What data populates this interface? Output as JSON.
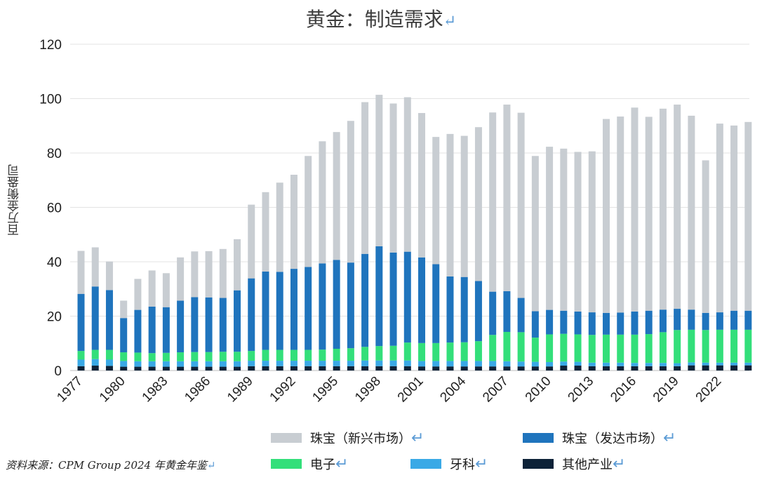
{
  "title": "黄金：制造需求",
  "ylabel": "百万金衡盎司",
  "source": "资料来源：CPM Group 2024 年黄金年鉴",
  "legend": [
    {
      "label": "珠宝（新兴市场）",
      "color": "#c8cdd2"
    },
    {
      "label": "珠宝（发达市场）",
      "color": "#1f74bd"
    },
    {
      "label": "电子",
      "color": "#33df7a"
    },
    {
      "label": "牙科",
      "color": "#3aa9e6"
    },
    {
      "label": "其他产业",
      "color": "#0d2238"
    }
  ],
  "chart_data": {
    "type": "bar",
    "stacked": true,
    "title": "黄金：制造需求",
    "xlabel": "",
    "ylabel": "百万金衡盎司",
    "ylim": [
      0,
      120
    ],
    "yticks": [
      0,
      20,
      40,
      60,
      80,
      100,
      120
    ],
    "grid": true,
    "legend_position": "bottom",
    "categories": [
      "1977",
      "1978",
      "1979",
      "1980",
      "1981",
      "1982",
      "1983",
      "1984",
      "1985",
      "1986",
      "1987",
      "1988",
      "1989",
      "1990",
      "1991",
      "1992",
      "1993",
      "1994",
      "1995",
      "1996",
      "1997",
      "1998",
      "1999",
      "2000",
      "2001",
      "2002",
      "2003",
      "2004",
      "2005",
      "2006",
      "2007",
      "2008",
      "2009",
      "2010",
      "2011",
      "2012",
      "2013",
      "2014",
      "2015",
      "2016",
      "2017",
      "2018",
      "2019",
      "2020",
      "2021",
      "2022",
      "2023",
      "2024"
    ],
    "xtick_labels": [
      "1977",
      "1980",
      "1983",
      "1986",
      "1989",
      "1992",
      "1995",
      "1998",
      "2001",
      "2004",
      "2007",
      "2010",
      "2013",
      "2016",
      "2019",
      "2022"
    ],
    "series": [
      {
        "name": "其他产业",
        "color": "#0d2238",
        "values": [
          1.6,
          1.8,
          1.7,
          1.4,
          1.4,
          1.4,
          1.4,
          1.4,
          1.4,
          1.4,
          1.4,
          1.4,
          1.6,
          1.6,
          1.6,
          1.6,
          1.6,
          1.6,
          1.6,
          1.6,
          1.6,
          1.6,
          1.6,
          1.6,
          1.5,
          1.5,
          1.5,
          1.5,
          1.5,
          1.5,
          1.5,
          1.5,
          1.5,
          1.5,
          1.8,
          1.8,
          1.6,
          1.6,
          1.6,
          1.6,
          1.6,
          1.6,
          1.6,
          1.9,
          1.9,
          1.9,
          1.9,
          1.9
        ]
      },
      {
        "name": "牙科",
        "color": "#3aa9e6",
        "values": [
          2.4,
          2.4,
          2.3,
          2.1,
          2.0,
          2.0,
          2.0,
          2.0,
          2.0,
          2.0,
          2.0,
          2.0,
          2.0,
          2.0,
          2.0,
          2.0,
          2.0,
          2.0,
          2.0,
          2.0,
          2.1,
          2.1,
          2.1,
          2.1,
          2.0,
          2.0,
          2.0,
          2.0,
          2.0,
          2.0,
          1.9,
          1.8,
          1.7,
          1.6,
          1.5,
          1.4,
          1.3,
          1.3,
          1.3,
          1.2,
          1.2,
          1.2,
          1.1,
          1.1,
          1.0,
          1.0,
          1.0,
          1.0
        ]
      },
      {
        "name": "电子",
        "color": "#33df7a",
        "values": [
          3.2,
          3.4,
          3.6,
          3.2,
          3.2,
          3.0,
          3.1,
          3.3,
          3.4,
          3.4,
          3.5,
          3.5,
          3.6,
          4.0,
          4.0,
          4.0,
          4.0,
          4.1,
          4.4,
          4.6,
          5.0,
          5.3,
          5.4,
          6.6,
          6.6,
          6.6,
          6.8,
          6.9,
          7.3,
          9.6,
          10.8,
          10.8,
          8.9,
          10.2,
          10.2,
          10.1,
          10.2,
          10.3,
          10.3,
          10.4,
          10.6,
          11.3,
          12.2,
          12.0,
          12.0,
          12.1,
          12.1,
          12.1
        ]
      },
      {
        "name": "珠宝（发达市场）",
        "color": "#1f74bd",
        "values": [
          21.0,
          23.3,
          22.0,
          12.6,
          15.7,
          17.1,
          16.8,
          19.0,
          20.2,
          20.1,
          19.8,
          22.6,
          26.7,
          28.8,
          28.7,
          29.8,
          30.5,
          31.7,
          32.7,
          31.5,
          34.2,
          36.7,
          34.3,
          33.4,
          31.5,
          29.0,
          24.3,
          24.0,
          22.1,
          15.9,
          15.0,
          12.6,
          9.7,
          9.0,
          8.5,
          8.4,
          8.3,
          8.0,
          8.1,
          8.5,
          8.6,
          8.3,
          7.8,
          7.4,
          6.3,
          6.4,
          7.0,
          7.0
        ]
      },
      {
        "name": "珠宝（新兴市场）",
        "color": "#c8cdd2",
        "values": [
          15.8,
          14.4,
          10.5,
          6.4,
          11.4,
          13.3,
          12.5,
          15.9,
          16.8,
          17.0,
          18.0,
          18.8,
          27.1,
          29.2,
          32.8,
          34.6,
          40.8,
          44.9,
          47.0,
          52.1,
          55.8,
          55.7,
          54.8,
          56.8,
          53.1,
          46.8,
          52.4,
          51.9,
          56.6,
          65.9,
          68.6,
          68.1,
          57.1,
          60.0,
          59.6,
          58.7,
          59.2,
          71.3,
          72.1,
          75.0,
          71.3,
          73.9,
          75.1,
          71.3,
          56.1,
          69.4,
          68.1,
          69.4
        ]
      }
    ]
  }
}
